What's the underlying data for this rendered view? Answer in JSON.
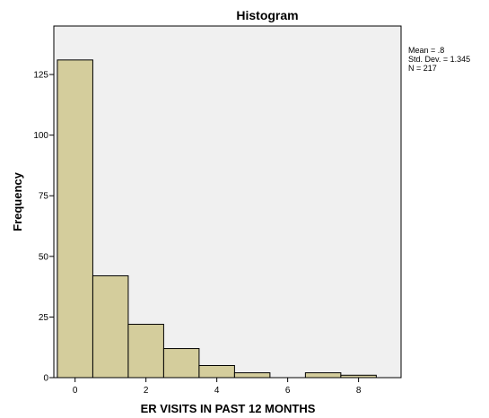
{
  "chart_data": {
    "type": "bar",
    "subtype": "histogram",
    "title": "Histogram",
    "xlabel": "ER VISITS IN PAST 12 MONTHS",
    "ylabel": "Frequency",
    "bins": [
      {
        "center": 0,
        "count": 131
      },
      {
        "center": 1,
        "count": 42
      },
      {
        "center": 2,
        "count": 22
      },
      {
        "center": 3,
        "count": 12
      },
      {
        "center": 4,
        "count": 5
      },
      {
        "center": 5,
        "count": 2
      },
      {
        "center": 6,
        "count": 0
      },
      {
        "center": 7,
        "count": 2
      },
      {
        "center": 8,
        "count": 1
      }
    ],
    "bin_width": 1,
    "xlim": [
      -0.6,
      9.2
    ],
    "ylim": [
      0,
      145
    ],
    "xticks": [
      0,
      2,
      4,
      6,
      8
    ],
    "yticks": [
      0,
      25,
      50,
      75,
      100,
      125
    ],
    "xtick_labels": [
      "0",
      "2",
      "4",
      "6",
      "8"
    ],
    "ytick_labels": [
      "0",
      "25",
      "50",
      "75",
      "100",
      "125"
    ],
    "stats": {
      "mean": "Mean = .8",
      "std": "Std. Dev. = 1.345",
      "n": "N = 217"
    },
    "grid": false,
    "legend": "none",
    "colors": {
      "bar_fill": "#d4cd9c",
      "bar_stroke": "#000000",
      "plot_bg": "#f0f0f0",
      "frame": "#000000"
    }
  }
}
